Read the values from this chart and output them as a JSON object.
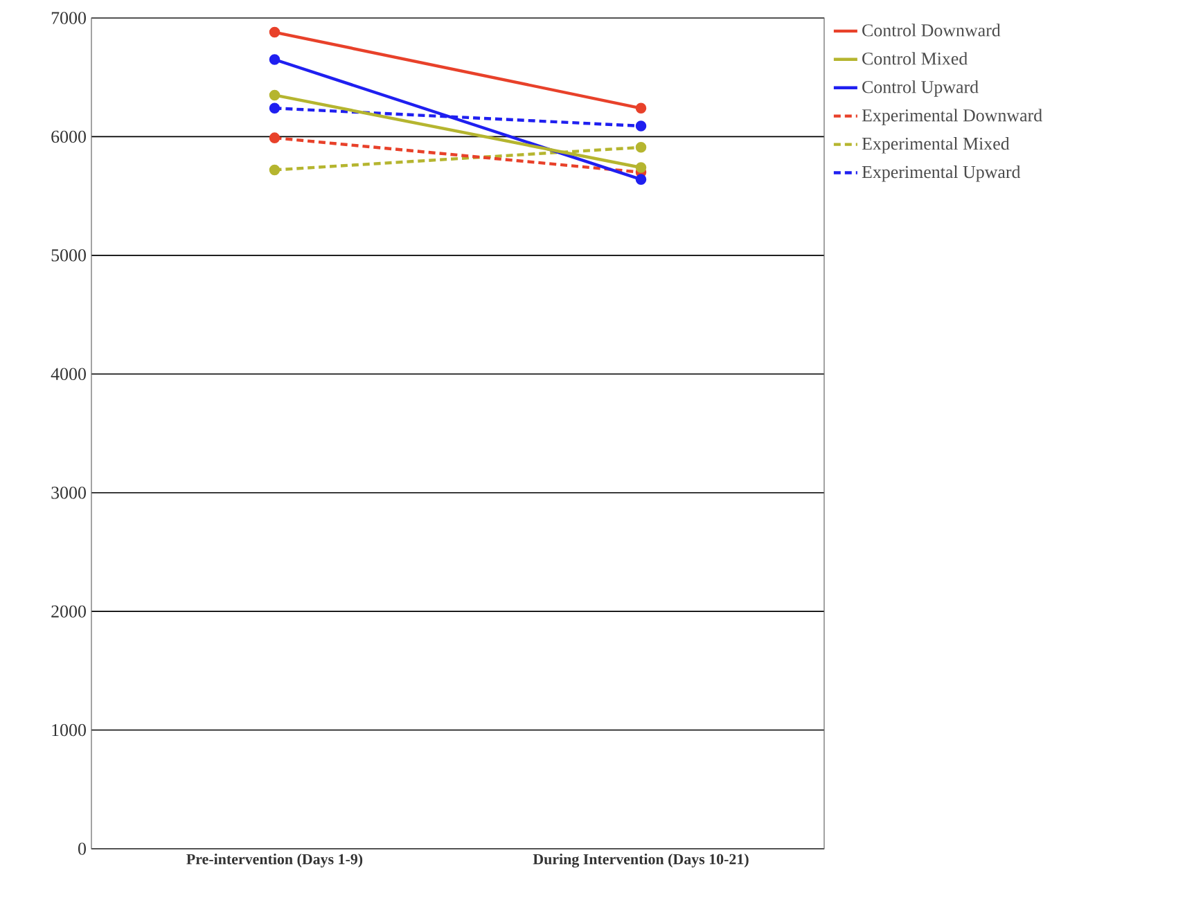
{
  "chart_data": {
    "type": "line",
    "categories": [
      "Pre-intervention (Days 1-9)",
      "During Intervention (Days 10-21)"
    ],
    "series": [
      {
        "name": "Control Downward",
        "color": "#e8412a",
        "line_style": "solid",
        "values": [
          6880,
          6240
        ]
      },
      {
        "name": "Control Mixed",
        "color": "#b5b52f",
        "line_style": "solid",
        "values": [
          6350,
          5740
        ]
      },
      {
        "name": "Control Upward",
        "color": "#1f1ff0",
        "line_style": "solid",
        "values": [
          6650,
          5640
        ]
      },
      {
        "name": "Experimental Downward",
        "color": "#e8412a",
        "line_style": "dashed",
        "values": [
          5990,
          5700
        ]
      },
      {
        "name": "Experimental Mixed",
        "color": "#b5b52f",
        "line_style": "dashed",
        "values": [
          5720,
          5910
        ]
      },
      {
        "name": "Experimental Upward",
        "color": "#1f1ff0",
        "line_style": "dashed",
        "values": [
          6240,
          6090
        ]
      }
    ],
    "ylim": [
      0,
      7000
    ],
    "yticks": [
      0,
      1000,
      2000,
      3000,
      4000,
      5000,
      6000,
      7000
    ],
    "grid": "y",
    "legend": "right",
    "marker": "circle"
  }
}
